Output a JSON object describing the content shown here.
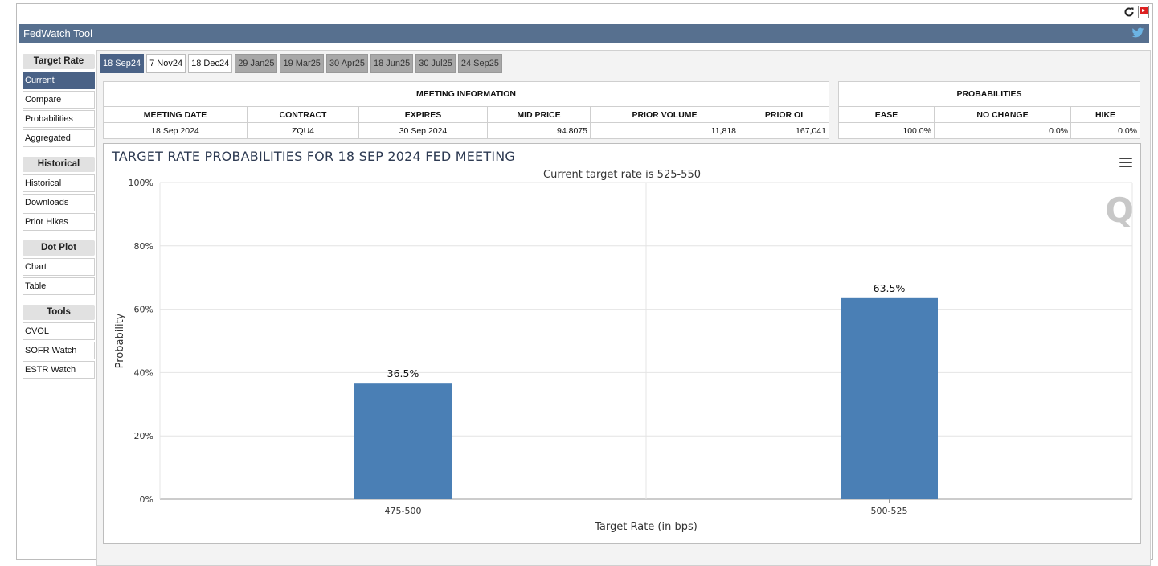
{
  "app": {
    "title": "FedWatch Tool"
  },
  "sidebar": {
    "groups": [
      {
        "header": "Target Rate",
        "items": [
          "Current",
          "Compare",
          "Probabilities",
          "Aggregated"
        ]
      },
      {
        "header": "Historical",
        "items": [
          "Historical",
          "Downloads",
          "Prior Hikes"
        ]
      },
      {
        "header": "Dot Plot",
        "items": [
          "Chart",
          "Table"
        ]
      },
      {
        "header": "Tools",
        "items": [
          "CVOL",
          "SOFR Watch",
          "ESTR Watch"
        ]
      }
    ],
    "active": "Current"
  },
  "tabs": [
    {
      "label": "18 Sep24",
      "state": "selected"
    },
    {
      "label": "7 Nov24",
      "state": "enabled"
    },
    {
      "label": "18 Dec24",
      "state": "enabled"
    },
    {
      "label": "29 Jan25",
      "state": "disabled"
    },
    {
      "label": "19 Mar25",
      "state": "disabled"
    },
    {
      "label": "30 Apr25",
      "state": "disabled"
    },
    {
      "label": "18 Jun25",
      "state": "disabled"
    },
    {
      "label": "30 Jul25",
      "state": "disabled"
    },
    {
      "label": "24 Sep25",
      "state": "disabled"
    }
  ],
  "meeting_info": {
    "title": "MEETING INFORMATION",
    "columns": [
      "MEETING DATE",
      "CONTRACT",
      "EXPIRES",
      "MID PRICE",
      "PRIOR VOLUME",
      "PRIOR OI"
    ],
    "row": [
      "18 Sep 2024",
      "ZQU4",
      "30 Sep 2024",
      "94.8075",
      "11,818",
      "167,041"
    ]
  },
  "probabilities": {
    "title": "PROBABILITIES",
    "columns": [
      "EASE",
      "NO CHANGE",
      "HIKE"
    ],
    "row": [
      "100.0%",
      "0.0%",
      "0.0%"
    ]
  },
  "chart_data": {
    "type": "bar",
    "title": "TARGET RATE PROBABILITIES FOR 18 SEP 2024 FED MEETING",
    "subtitle": "Current target rate is 525-550",
    "xlabel": "Target Rate (in bps)",
    "ylabel": "Probability",
    "categories": [
      "475-500",
      "500-525"
    ],
    "values": [
      36.5,
      63.5
    ],
    "data_labels": [
      "36.5%",
      "63.5%"
    ],
    "ylim": [
      0,
      100
    ],
    "yticks": [
      "0%",
      "20%",
      "40%",
      "60%",
      "80%",
      "100%"
    ],
    "grid": true,
    "bar_color": "#4a7fb5"
  },
  "colors": {
    "header": "#57708f",
    "active": "#4a6286",
    "disabled": "#a8a8a8"
  }
}
